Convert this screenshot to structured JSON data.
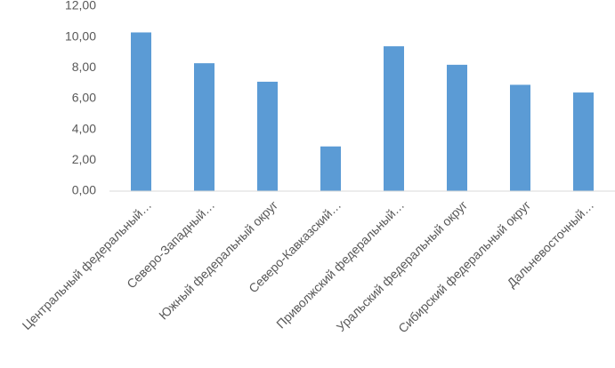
{
  "chart_data": {
    "type": "bar",
    "categories": [
      "Центральный федеральный…",
      "Северо-Западный…",
      "Южный федеральный округ",
      "Северо-Кавказский…",
      "Приволжский федеральный…",
      "Уральский федеральный округ",
      "Сибирский федеральный округ",
      "Дальневосточный…"
    ],
    "values": [
      10.3,
      8.3,
      7.1,
      2.9,
      9.4,
      8.2,
      6.9,
      6.4
    ],
    "color": "#5b9bd5",
    "ylim": [
      0,
      12
    ],
    "yticks": [
      {
        "value": 0,
        "label": "0,00"
      },
      {
        "value": 2,
        "label": "2,00"
      },
      {
        "value": 4,
        "label": "4,00"
      },
      {
        "value": 6,
        "label": "6,00"
      },
      {
        "value": 8,
        "label": "8,00"
      },
      {
        "value": 10,
        "label": "10,00"
      },
      {
        "value": 12,
        "label": "12,00"
      }
    ],
    "grid": false
  }
}
